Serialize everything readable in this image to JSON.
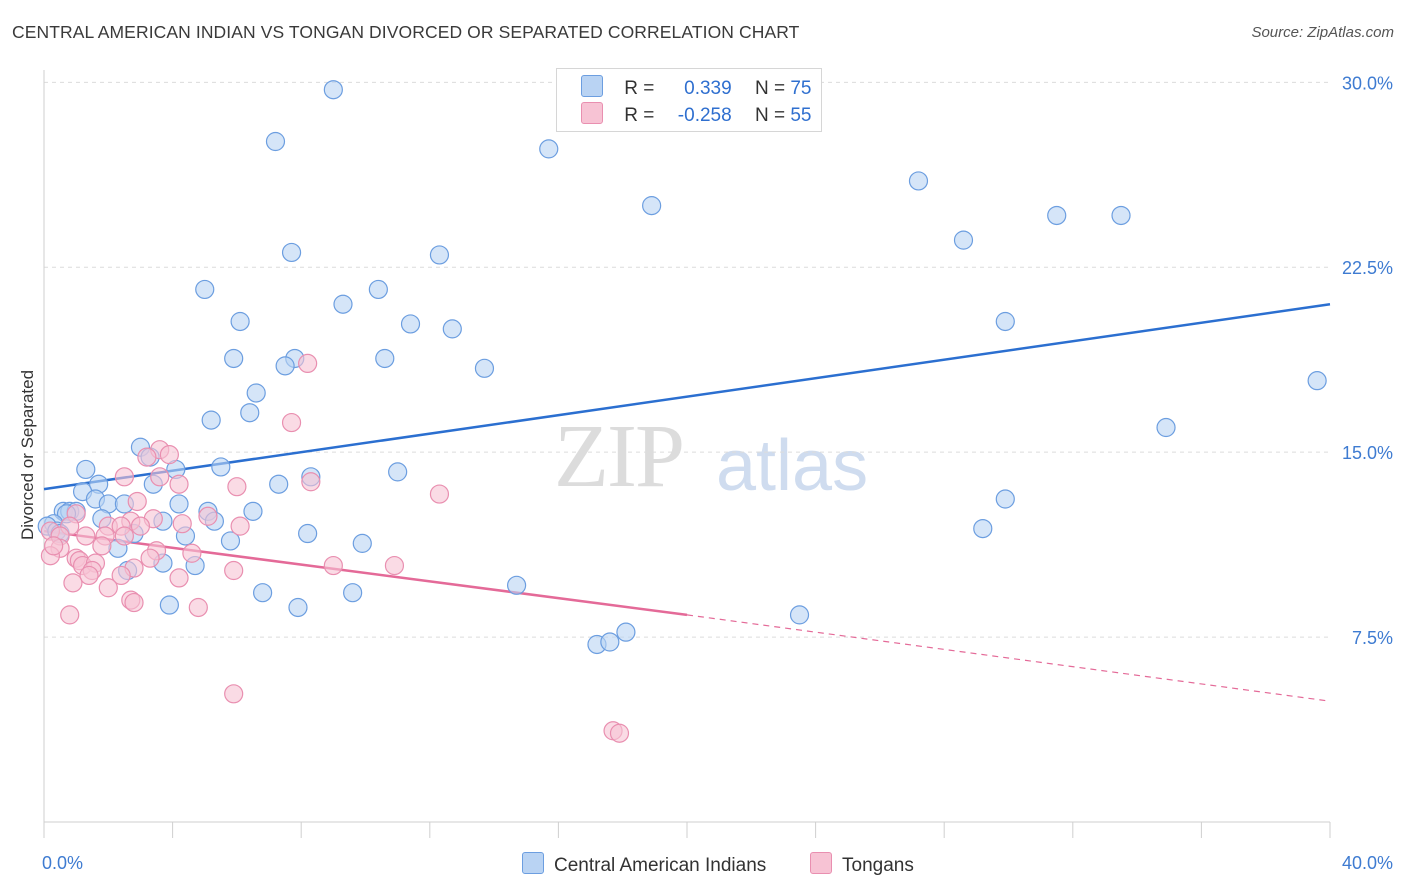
{
  "title": "CENTRAL AMERICAN INDIAN VS TONGAN DIVORCED OR SEPARATED CORRELATION CHART",
  "source": "Source: ZipAtlas.com",
  "watermark": {
    "zip": "ZIP",
    "atlas": "atlas"
  },
  "legend_top": [
    {
      "r_label": "R =",
      "r_value": "0.339",
      "n_label": "N =",
      "n_value": "75"
    },
    {
      "r_label": "R =",
      "r_value": "-0.258",
      "n_label": "N =",
      "n_value": "55"
    }
  ],
  "legend_bottom": [
    "Central American Indians",
    "Tongans"
  ],
  "chart_data": {
    "type": "scatter",
    "xlabel": "",
    "ylabel": "Divorced or Separated",
    "xlim": [
      0,
      40
    ],
    "ylim": [
      0,
      30.5
    ],
    "x_tick_labels": [
      "0.0%",
      "40.0%"
    ],
    "y_ticks": [
      7.5,
      15.0,
      22.5,
      30.0
    ],
    "y_tick_labels": [
      "7.5%",
      "15.0%",
      "22.5%",
      "30.0%"
    ],
    "grid": "horizontal dashed",
    "colors": {
      "blue_fill": "#b9d3f3",
      "blue_stroke": "#6c9ee0",
      "blue_line": "#2b6fd0",
      "pink_fill": "#f7c3d4",
      "pink_stroke": "#e98fb0",
      "pink_line": "#e46a98",
      "axis_text": "#3e7bd1"
    },
    "series": [
      {
        "name": "Central American Indians",
        "trend": {
          "x0": 0,
          "y0": 13.5,
          "x1": 40,
          "y1": 21.0
        },
        "points": [
          [
            9.0,
            29.7
          ],
          [
            7.2,
            27.6
          ],
          [
            15.7,
            27.3
          ],
          [
            18.9,
            25.0
          ],
          [
            27.2,
            26.0
          ],
          [
            31.5,
            24.6
          ],
          [
            33.5,
            24.6
          ],
          [
            28.6,
            23.6
          ],
          [
            7.7,
            23.1
          ],
          [
            12.3,
            23.0
          ],
          [
            5.0,
            21.6
          ],
          [
            10.4,
            21.6
          ],
          [
            9.3,
            21.0
          ],
          [
            6.1,
            20.3
          ],
          [
            11.4,
            20.2
          ],
          [
            12.7,
            20.0
          ],
          [
            29.9,
            20.3
          ],
          [
            5.9,
            18.8
          ],
          [
            7.8,
            18.8
          ],
          [
            10.6,
            18.8
          ],
          [
            7.5,
            18.5
          ],
          [
            13.7,
            18.4
          ],
          [
            39.6,
            17.9
          ],
          [
            6.6,
            17.4
          ],
          [
            6.4,
            16.6
          ],
          [
            5.2,
            16.3
          ],
          [
            34.9,
            16.0
          ],
          [
            3.0,
            15.2
          ],
          [
            3.3,
            14.8
          ],
          [
            1.3,
            14.3
          ],
          [
            4.1,
            14.3
          ],
          [
            5.5,
            14.4
          ],
          [
            11.0,
            14.2
          ],
          [
            8.3,
            14.0
          ],
          [
            1.7,
            13.7
          ],
          [
            3.4,
            13.7
          ],
          [
            7.3,
            13.7
          ],
          [
            1.2,
            13.4
          ],
          [
            1.6,
            13.1
          ],
          [
            4.2,
            12.9
          ],
          [
            2.0,
            12.9
          ],
          [
            2.5,
            12.9
          ],
          [
            0.6,
            12.6
          ],
          [
            0.8,
            12.6
          ],
          [
            1.0,
            12.6
          ],
          [
            0.7,
            12.5
          ],
          [
            6.5,
            12.6
          ],
          [
            29.9,
            13.1
          ],
          [
            1.8,
            12.3
          ],
          [
            5.1,
            12.6
          ],
          [
            3.7,
            12.2
          ],
          [
            5.3,
            12.2
          ],
          [
            0.3,
            12.1
          ],
          [
            0.1,
            12.0
          ],
          [
            0.4,
            11.8
          ],
          [
            0.5,
            11.7
          ],
          [
            2.8,
            11.7
          ],
          [
            4.4,
            11.6
          ],
          [
            8.2,
            11.7
          ],
          [
            29.2,
            11.9
          ],
          [
            5.8,
            11.4
          ],
          [
            9.9,
            11.3
          ],
          [
            2.3,
            11.1
          ],
          [
            3.7,
            10.5
          ],
          [
            4.7,
            10.4
          ],
          [
            2.6,
            10.2
          ],
          [
            6.8,
            9.3
          ],
          [
            9.6,
            9.3
          ],
          [
            14.7,
            9.6
          ],
          [
            3.9,
            8.8
          ],
          [
            7.9,
            8.7
          ],
          [
            23.5,
            8.4
          ],
          [
            18.1,
            7.7
          ],
          [
            17.2,
            7.2
          ],
          [
            17.6,
            7.3
          ]
        ]
      },
      {
        "name": "Tongans",
        "trend": {
          "x0": 0,
          "y0": 11.8,
          "x1": 20,
          "y1": 8.4,
          "x2": 40,
          "y2": 4.9
        },
        "points": [
          [
            8.2,
            18.6
          ],
          [
            7.7,
            16.2
          ],
          [
            3.6,
            15.1
          ],
          [
            3.9,
            14.9
          ],
          [
            3.2,
            14.8
          ],
          [
            2.5,
            14.0
          ],
          [
            3.6,
            14.0
          ],
          [
            4.2,
            13.7
          ],
          [
            6.0,
            13.6
          ],
          [
            8.3,
            13.8
          ],
          [
            12.3,
            13.3
          ],
          [
            2.9,
            13.0
          ],
          [
            1.0,
            12.5
          ],
          [
            2.7,
            12.2
          ],
          [
            3.4,
            12.3
          ],
          [
            5.1,
            12.4
          ],
          [
            0.8,
            12.0
          ],
          [
            2.0,
            12.0
          ],
          [
            2.4,
            12.0
          ],
          [
            3.0,
            12.0
          ],
          [
            4.3,
            12.1
          ],
          [
            6.1,
            12.0
          ],
          [
            0.2,
            11.8
          ],
          [
            0.5,
            11.6
          ],
          [
            1.3,
            11.6
          ],
          [
            1.9,
            11.6
          ],
          [
            2.5,
            11.6
          ],
          [
            1.8,
            11.2
          ],
          [
            0.5,
            11.1
          ],
          [
            0.2,
            10.8
          ],
          [
            3.5,
            11.0
          ],
          [
            3.3,
            10.7
          ],
          [
            4.6,
            10.9
          ],
          [
            1.0,
            10.7
          ],
          [
            1.1,
            10.6
          ],
          [
            1.2,
            10.4
          ],
          [
            1.6,
            10.5
          ],
          [
            1.5,
            10.2
          ],
          [
            2.8,
            10.3
          ],
          [
            5.9,
            10.2
          ],
          [
            9.0,
            10.4
          ],
          [
            10.9,
            10.4
          ],
          [
            1.4,
            10.0
          ],
          [
            2.4,
            10.0
          ],
          [
            0.9,
            9.7
          ],
          [
            4.2,
            9.9
          ],
          [
            2.0,
            9.5
          ],
          [
            2.7,
            9.0
          ],
          [
            2.8,
            8.9
          ],
          [
            4.8,
            8.7
          ],
          [
            0.8,
            8.4
          ],
          [
            5.9,
            5.2
          ],
          [
            17.7,
            3.7
          ],
          [
            17.9,
            3.6
          ],
          [
            0.3,
            11.2
          ]
        ]
      }
    ]
  }
}
